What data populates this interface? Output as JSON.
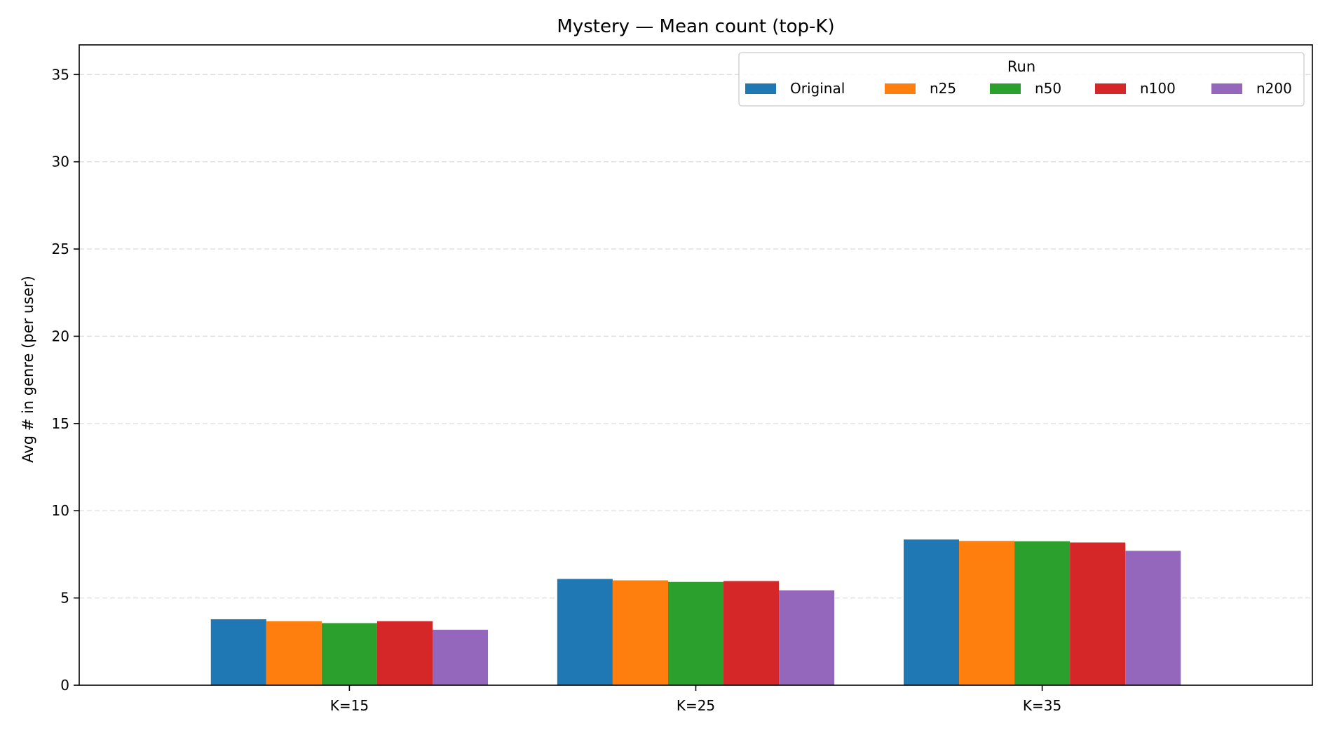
{
  "chart_data": {
    "type": "bar",
    "title": "Mystery — Mean count (top-K)",
    "xlabel": "",
    "ylabel": "Avg # in genre (per user)",
    "categories": [
      "K=15",
      "K=25",
      "K=35"
    ],
    "ylim": [
      0,
      36.7
    ],
    "yticks": [
      0,
      5,
      10,
      15,
      20,
      25,
      30,
      35
    ],
    "grid": "y-dashed",
    "legend": {
      "title": "Run",
      "placement": "top-right",
      "columns": 5
    },
    "series": [
      {
        "name": "Original",
        "color": "#1f77b4",
        "values": [
          3.78,
          6.09,
          8.35
        ]
      },
      {
        "name": "n25",
        "color": "#ff7f0e",
        "values": [
          3.67,
          6.01,
          8.27
        ]
      },
      {
        "name": "n50",
        "color": "#2ca02c",
        "values": [
          3.56,
          5.92,
          8.25
        ]
      },
      {
        "name": "n100",
        "color": "#d62728",
        "values": [
          3.67,
          5.97,
          8.18
        ]
      },
      {
        "name": "n200",
        "color": "#9467bd",
        "values": [
          3.18,
          5.44,
          7.7
        ]
      }
    ]
  }
}
